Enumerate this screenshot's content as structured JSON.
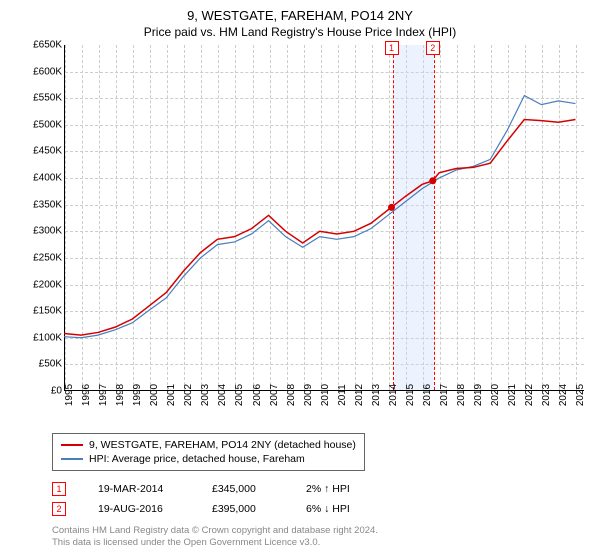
{
  "title": "9, WESTGATE, FAREHAM, PO14 2NY",
  "subtitle": "Price paid vs. HM Land Registry's House Price Index (HPI)",
  "chart": {
    "type": "line",
    "xlim": [
      1995,
      2025.5
    ],
    "ylim": [
      0,
      650000
    ],
    "ytick_step": 50000,
    "y_tick_labels": [
      "£0",
      "£50K",
      "£100K",
      "£150K",
      "£200K",
      "£250K",
      "£300K",
      "£350K",
      "£400K",
      "£450K",
      "£500K",
      "£550K",
      "£600K",
      "£650K"
    ],
    "x_ticks": [
      1995,
      1996,
      1997,
      1998,
      1999,
      2000,
      2001,
      2002,
      2003,
      2004,
      2005,
      2006,
      2007,
      2008,
      2009,
      2010,
      2011,
      2012,
      2013,
      2014,
      2015,
      2016,
      2017,
      2018,
      2019,
      2020,
      2021,
      2022,
      2023,
      2024,
      2025
    ],
    "background_color": "#ffffff",
    "grid_color": "#cccccc",
    "grid_style": "dashed",
    "axis_color": "#000000",
    "label_fontsize": 10,
    "series": [
      {
        "name": "property",
        "label": "9, WESTGATE, FAREHAM, PO14 2NY (detached house)",
        "color": "#d40000",
        "line_width": 1.5,
        "data": [
          [
            1995,
            108000
          ],
          [
            1996,
            105000
          ],
          [
            1997,
            110000
          ],
          [
            1998,
            120000
          ],
          [
            1999,
            135000
          ],
          [
            2000,
            160000
          ],
          [
            2001,
            185000
          ],
          [
            2002,
            225000
          ],
          [
            2003,
            260000
          ],
          [
            2004,
            285000
          ],
          [
            2005,
            290000
          ],
          [
            2006,
            305000
          ],
          [
            2007,
            330000
          ],
          [
            2008,
            300000
          ],
          [
            2009,
            278000
          ],
          [
            2010,
            300000
          ],
          [
            2011,
            295000
          ],
          [
            2012,
            300000
          ],
          [
            2013,
            315000
          ],
          [
            2014.2,
            345000
          ],
          [
            2015,
            365000
          ],
          [
            2016,
            388000
          ],
          [
            2016.63,
            395000
          ],
          [
            2017,
            410000
          ],
          [
            2018,
            418000
          ],
          [
            2019,
            420000
          ],
          [
            2020,
            428000
          ],
          [
            2021,
            470000
          ],
          [
            2022,
            510000
          ],
          [
            2023,
            508000
          ],
          [
            2024,
            505000
          ],
          [
            2025,
            510000
          ]
        ]
      },
      {
        "name": "hpi",
        "label": "HPI: Average price, detached house, Fareham",
        "color": "#4a7ebb",
        "line_width": 1.2,
        "data": [
          [
            1995,
            102000
          ],
          [
            1996,
            100000
          ],
          [
            1997,
            105000
          ],
          [
            1998,
            115000
          ],
          [
            1999,
            128000
          ],
          [
            2000,
            152000
          ],
          [
            2001,
            175000
          ],
          [
            2002,
            215000
          ],
          [
            2003,
            250000
          ],
          [
            2004,
            275000
          ],
          [
            2005,
            280000
          ],
          [
            2006,
            295000
          ],
          [
            2007,
            320000
          ],
          [
            2008,
            290000
          ],
          [
            2009,
            270000
          ],
          [
            2010,
            290000
          ],
          [
            2011,
            285000
          ],
          [
            2012,
            290000
          ],
          [
            2013,
            305000
          ],
          [
            2014,
            330000
          ],
          [
            2015,
            355000
          ],
          [
            2016,
            380000
          ],
          [
            2017,
            400000
          ],
          [
            2018,
            415000
          ],
          [
            2019,
            422000
          ],
          [
            2020,
            435000
          ],
          [
            2021,
            490000
          ],
          [
            2022,
            555000
          ],
          [
            2023,
            538000
          ],
          [
            2024,
            545000
          ],
          [
            2025,
            540000
          ]
        ]
      }
    ],
    "sale_markers": [
      {
        "n": 1,
        "x": 2014.21,
        "y": 345000,
        "color": "#d40000"
      },
      {
        "n": 2,
        "x": 2016.63,
        "y": 395000,
        "color": "#d40000"
      }
    ],
    "band": {
      "from": 2014.21,
      "to": 2016.63,
      "color": "rgba(200,220,255,0.35)"
    },
    "vlines": [
      2014.21,
      2016.63
    ]
  },
  "sales": [
    {
      "n": "1",
      "date": "19-MAR-2014",
      "price": "£345,000",
      "delta": "2% ↑ HPI"
    },
    {
      "n": "2",
      "date": "19-AUG-2016",
      "price": "£395,000",
      "delta": "6% ↓ HPI"
    }
  ],
  "footer_line1": "Contains HM Land Registry data © Crown copyright and database right 2024.",
  "footer_line2": "This data is licensed under the Open Government Licence v3.0."
}
